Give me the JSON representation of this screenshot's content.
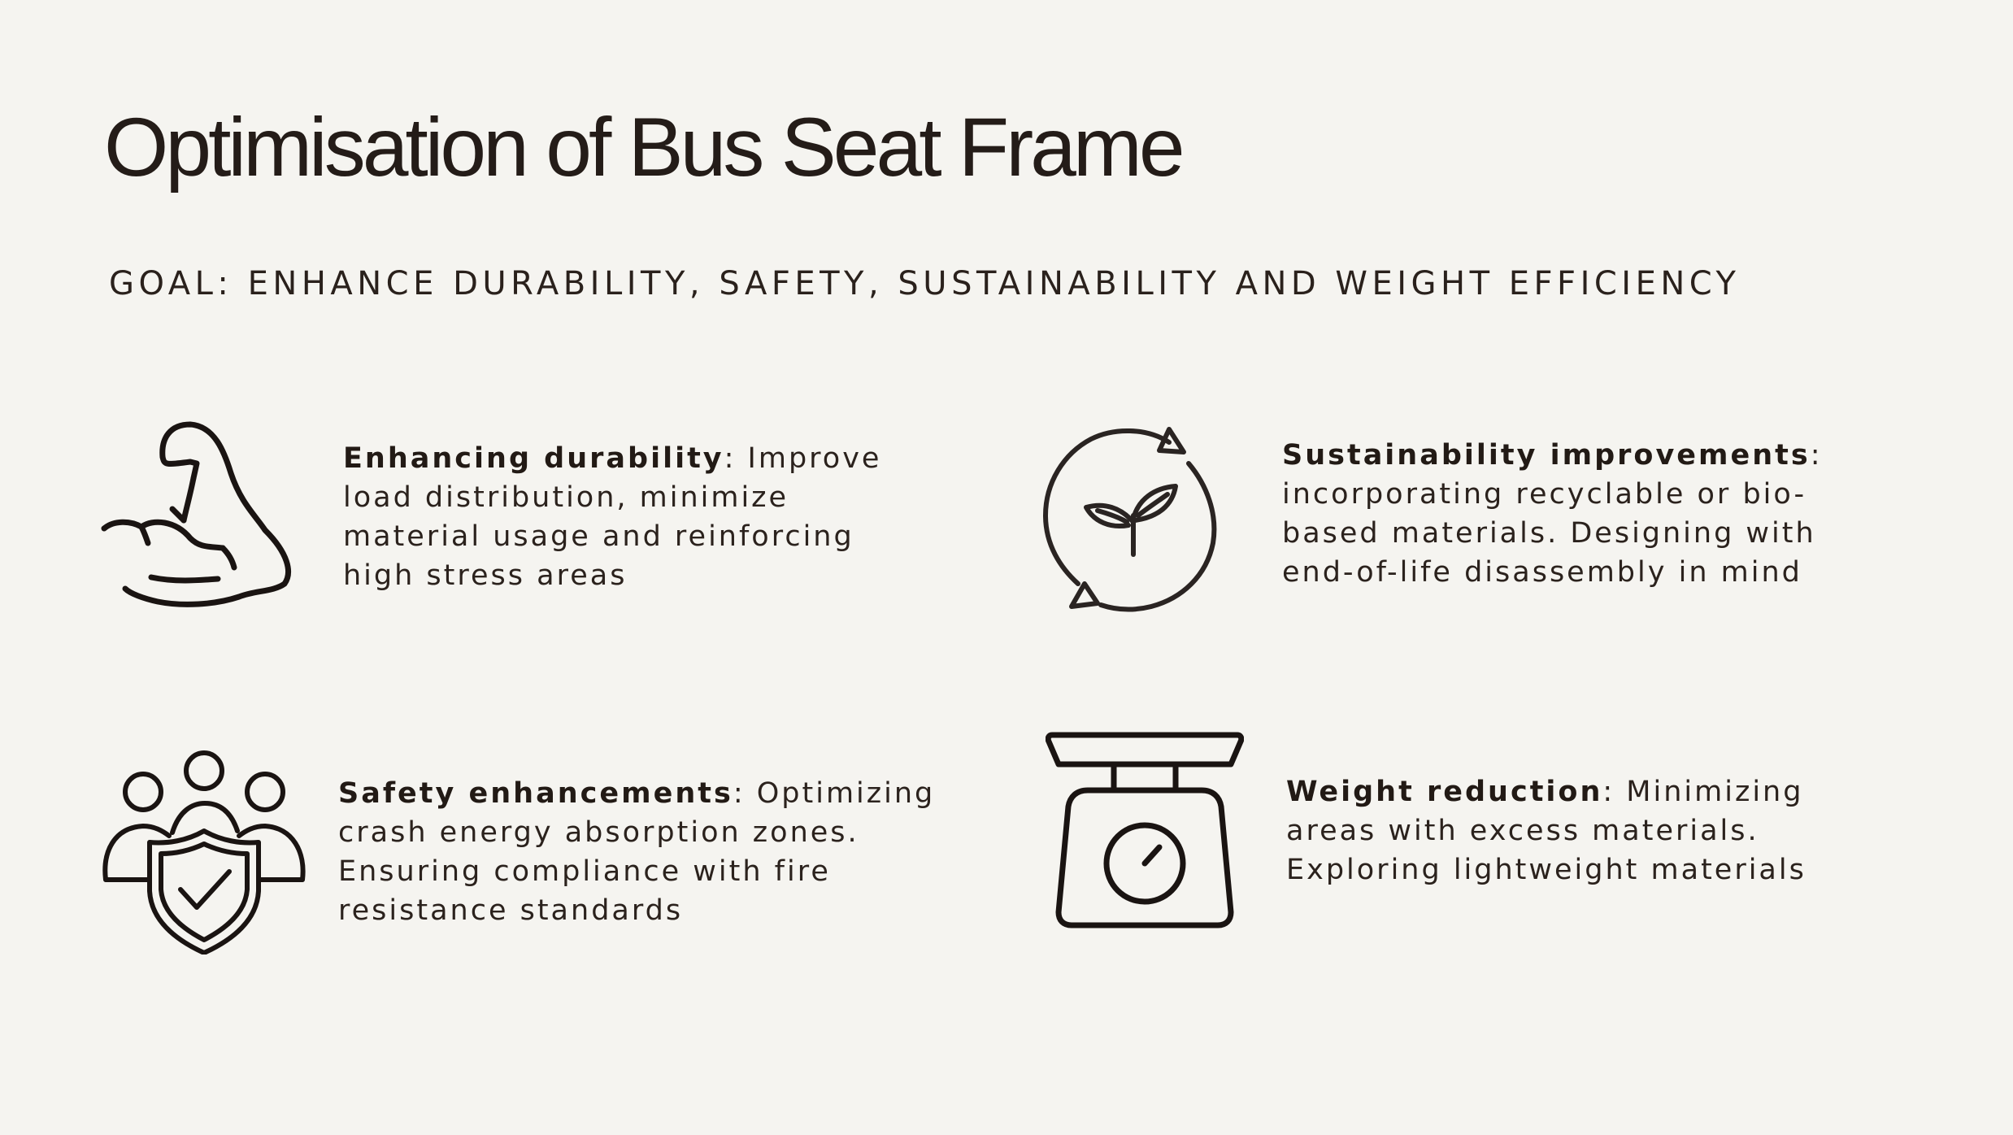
{
  "title": "Optimisation of Bus Seat Frame",
  "goal": "GOAL: ENHANCE DURABILITY, SAFETY, SUSTAINABILITY AND WEIGHT EFFICIENCY",
  "features": [
    {
      "icon": "flexed-arm-icon",
      "heading": "Enhancing durability",
      "body": ": Improve load distribution, minimize material usage and reinforcing high stress areas"
    },
    {
      "icon": "recycle-sprout-icon",
      "heading": "Sustainability improvements",
      "body": ": incorporating recyclable or bio-based materials. Designing with end-of-life disassembly in mind"
    },
    {
      "icon": "people-shield-icon",
      "heading": "Safety enhancements",
      "body": ": Optimizing crash energy absorption zones. Ensuring compliance with fire resistance standards"
    },
    {
      "icon": "weighing-scale-icon",
      "heading": "Weight reduction",
      "body": ": Minimizing areas with excess materials. Exploring lightweight materials"
    }
  ],
  "colors": {
    "background": "#f5f4f0",
    "text": "#241c18"
  }
}
